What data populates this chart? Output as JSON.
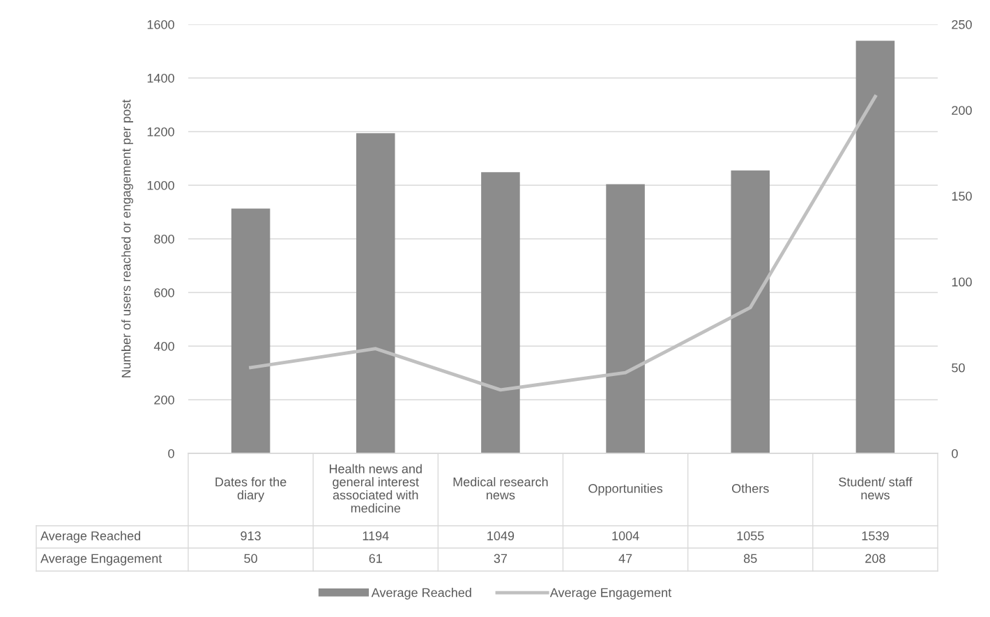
{
  "chart_data": {
    "type": "bar",
    "ylabel": "Number of users reached or engagement per post",
    "categories": [
      "Dates for the diary",
      "Health news and general interest associated with medicine",
      "Medical research news",
      "Opportunities",
      "Others",
      "Student/ staff news"
    ],
    "series": [
      {
        "name": "Average Reached",
        "color": "#8c8c8c",
        "values": [
          913,
          1194,
          1049,
          1004,
          1055,
          1539
        ]
      },
      {
        "name": "Average Engagement",
        "type": "line",
        "axis": "y2",
        "color": "#c0c0c0",
        "values": [
          50,
          61,
          37,
          47,
          85,
          208
        ]
      }
    ],
    "ylim": [
      0,
      1600
    ],
    "yticks": [
      0,
      200,
      400,
      600,
      800,
      1000,
      1200,
      1400,
      1600
    ],
    "y2lim": [
      0,
      250
    ],
    "y2ticks": [
      0,
      50,
      100,
      150,
      200,
      250
    ],
    "grid": "y",
    "legend": "bottom",
    "data_labels": true,
    "marker": "none",
    "line_style": "solid"
  }
}
